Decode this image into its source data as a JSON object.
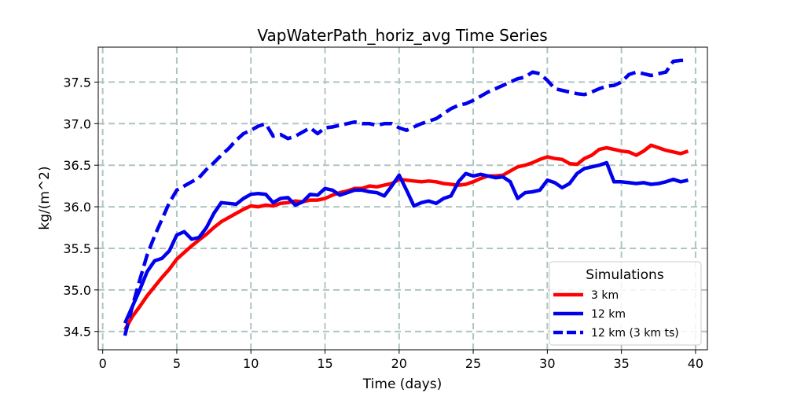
{
  "chart_data": {
    "type": "line",
    "title": "VapWaterPath_horiz_avg Time Series",
    "xlabel": "Time (days)",
    "ylabel": "kg/(m^2)",
    "xlim": [
      -0.3,
      40.8
    ],
    "ylim": [
      34.28,
      37.92
    ],
    "xticks": [
      0,
      5,
      10,
      15,
      20,
      25,
      30,
      35,
      40
    ],
    "yticks": [
      34.5,
      35.0,
      35.5,
      36.0,
      36.5,
      37.0,
      37.5
    ],
    "xtick_labels": [
      "0",
      "5",
      "10",
      "15",
      "20",
      "25",
      "30",
      "35",
      "40"
    ],
    "ytick_labels": [
      "34.5",
      "35.0",
      "35.5",
      "36.0",
      "36.5",
      "37.0",
      "37.5"
    ],
    "grid": true,
    "legend": {
      "title": "Simulations",
      "placement": "lower-right",
      "entries": [
        "3 km",
        "12 km",
        "12 km (3 km ts)"
      ]
    },
    "series": [
      {
        "name": "3 km",
        "color": "#ff0000",
        "style": "solid",
        "x": [
          1.5,
          2,
          2.5,
          3,
          3.5,
          4,
          4.5,
          5,
          5.5,
          6,
          6.5,
          7,
          7.5,
          8,
          8.5,
          9,
          9.5,
          10,
          10.5,
          11,
          11.5,
          12,
          12.5,
          13,
          13.5,
          14,
          14.5,
          15,
          15.5,
          16,
          16.5,
          17,
          17.5,
          18,
          18.5,
          19,
          19.5,
          20,
          20.5,
          21,
          21.5,
          22,
          22.5,
          23,
          23.5,
          24,
          24.5,
          25,
          25.5,
          26,
          26.5,
          27,
          27.5,
          28,
          28.5,
          29,
          29.5,
          30,
          30.5,
          31,
          31.5,
          32,
          32.5,
          33,
          33.5,
          34,
          34.5,
          35,
          35.5,
          36,
          36.5,
          37,
          37.5,
          38,
          38.5,
          39,
          39.5
        ],
        "y": [
          34.52,
          34.68,
          34.8,
          34.93,
          35.04,
          35.15,
          35.25,
          35.37,
          35.45,
          35.53,
          35.6,
          35.67,
          35.75,
          35.82,
          35.87,
          35.92,
          35.97,
          36.01,
          36.0,
          36.02,
          36.01,
          36.04,
          36.05,
          36.07,
          36.06,
          36.08,
          36.08,
          36.1,
          36.14,
          36.17,
          36.19,
          36.22,
          36.22,
          36.25,
          36.24,
          36.26,
          36.28,
          36.33,
          36.32,
          36.31,
          36.3,
          36.31,
          36.3,
          36.28,
          36.27,
          36.26,
          36.27,
          36.3,
          36.34,
          36.37,
          36.37,
          36.38,
          36.43,
          36.48,
          36.5,
          36.53,
          36.57,
          36.6,
          36.58,
          36.57,
          36.52,
          36.51,
          36.58,
          36.62,
          36.69,
          36.71,
          36.69,
          36.67,
          36.66,
          36.62,
          36.67,
          36.74,
          36.71,
          36.68,
          36.66,
          36.64,
          36.67
        ]
      },
      {
        "name": "12 km",
        "color": "#0000ee",
        "style": "solid",
        "x": [
          1.5,
          2,
          2.5,
          3,
          3.5,
          4,
          4.5,
          5,
          5.5,
          6,
          6.5,
          7,
          7.5,
          8,
          8.5,
          9,
          9.5,
          10,
          10.5,
          11,
          11.5,
          12,
          12.5,
          13,
          13.5,
          14,
          14.5,
          15,
          15.5,
          16,
          16.5,
          17,
          17.5,
          18,
          18.5,
          19,
          19.5,
          20,
          20.5,
          21,
          21.5,
          22,
          22.5,
          23,
          23.5,
          24,
          24.5,
          25,
          25.5,
          26,
          26.5,
          27,
          27.5,
          28,
          28.5,
          29,
          29.5,
          30,
          30.5,
          31,
          31.5,
          32,
          32.5,
          33,
          33.5,
          34,
          34.5,
          35,
          35.5,
          36,
          36.5,
          37,
          37.5,
          38,
          38.5,
          39,
          39.5
        ],
        "y": [
          34.6,
          34.8,
          35.0,
          35.22,
          35.35,
          35.38,
          35.47,
          35.66,
          35.7,
          35.61,
          35.63,
          35.75,
          35.92,
          36.05,
          36.04,
          36.03,
          36.1,
          36.15,
          36.16,
          36.15,
          36.05,
          36.1,
          36.11,
          36.02,
          36.06,
          36.15,
          36.14,
          36.22,
          36.2,
          36.14,
          36.17,
          36.2,
          36.2,
          36.18,
          36.17,
          36.13,
          36.25,
          36.38,
          36.2,
          36.01,
          36.05,
          36.07,
          36.04,
          36.1,
          36.13,
          36.3,
          36.4,
          36.37,
          36.39,
          36.37,
          36.35,
          36.36,
          36.3,
          36.1,
          36.17,
          36.18,
          36.2,
          36.32,
          36.29,
          36.23,
          36.28,
          36.4,
          36.46,
          36.48,
          36.5,
          36.53,
          36.3,
          36.3,
          36.29,
          36.28,
          36.29,
          36.27,
          36.28,
          36.3,
          36.33,
          36.3,
          36.32
        ]
      },
      {
        "name": "12 km (3 km ts)",
        "color": "#0000ee",
        "style": "dashed",
        "x": [
          1.5,
          2,
          2.5,
          3,
          3.5,
          4,
          4.5,
          5,
          5.5,
          6,
          6.5,
          7,
          7.5,
          8,
          8.5,
          9,
          9.5,
          10,
          10.5,
          11,
          11.5,
          12,
          12.5,
          13,
          13.5,
          14,
          14.5,
          15,
          15.5,
          16,
          16.5,
          17,
          17.5,
          18,
          18.5,
          19,
          19.5,
          20,
          20.5,
          21,
          21.5,
          22,
          22.5,
          23,
          23.5,
          24,
          24.5,
          25,
          25.5,
          26,
          26.5,
          27,
          27.5,
          28,
          28.5,
          29,
          29.5,
          30,
          30.5,
          31,
          31.5,
          32,
          32.5,
          33,
          33.5,
          34,
          34.5,
          35,
          35.5,
          36,
          36.5,
          37,
          37.5,
          38,
          38.5,
          39,
          39.5
        ],
        "y": [
          34.45,
          34.8,
          35.12,
          35.42,
          35.65,
          35.85,
          36.05,
          36.2,
          36.25,
          36.3,
          36.35,
          36.45,
          36.53,
          36.62,
          36.7,
          36.8,
          36.88,
          36.92,
          36.97,
          37.0,
          36.85,
          36.87,
          36.82,
          36.85,
          36.9,
          36.95,
          36.88,
          36.95,
          36.96,
          36.98,
          37.0,
          37.02,
          37.0,
          37.0,
          36.98,
          37.0,
          37.0,
          36.95,
          36.92,
          36.96,
          37.0,
          37.03,
          37.06,
          37.12,
          37.18,
          37.22,
          37.24,
          37.28,
          37.33,
          37.38,
          37.42,
          37.46,
          37.5,
          37.54,
          37.56,
          37.62,
          37.6,
          37.52,
          37.42,
          37.4,
          37.38,
          37.36,
          37.35,
          37.38,
          37.42,
          37.45,
          37.46,
          37.5,
          37.59,
          37.62,
          37.6,
          37.58,
          37.6,
          37.62,
          37.75,
          37.76,
          37.76
        ]
      }
    ]
  }
}
